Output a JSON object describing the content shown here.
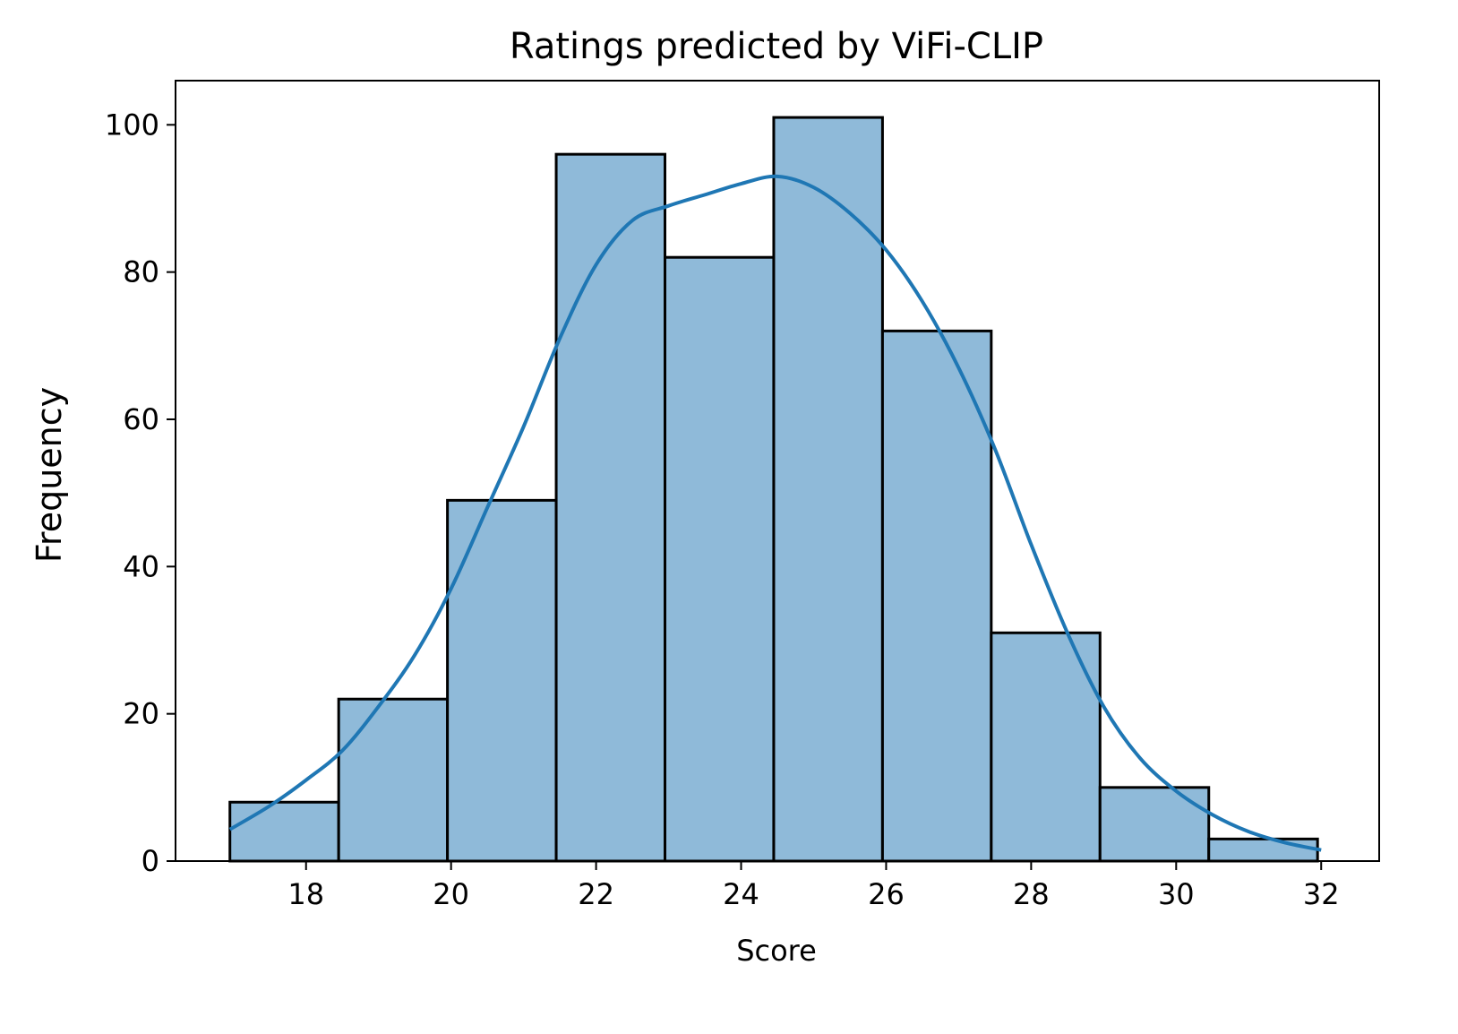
{
  "chart_data": {
    "type": "bar",
    "subtype": "histogram",
    "title": "Ratings predicted by ViFi-CLIP",
    "xlabel": "Score",
    "ylabel": "Frequency",
    "xlim": [
      16.2,
      32.8
    ],
    "ylim": [
      0,
      106
    ],
    "xticks": [
      18,
      20,
      22,
      24,
      26,
      28,
      30,
      32
    ],
    "yticks": [
      0,
      20,
      40,
      60,
      80,
      100
    ],
    "bin_edges": [
      16.95,
      18.45,
      19.95,
      21.45,
      22.95,
      24.45,
      25.95,
      27.45,
      28.95,
      30.45,
      31.95
    ],
    "values": [
      8,
      22,
      49,
      96,
      82,
      101,
      72,
      31,
      10,
      3
    ],
    "kde": {
      "x": [
        16.95,
        17.5,
        18.0,
        18.5,
        19.0,
        19.5,
        20.0,
        20.5,
        21.0,
        21.5,
        22.0,
        22.5,
        23.0,
        23.5,
        24.0,
        24.5,
        25.0,
        25.5,
        26.0,
        26.5,
        27.0,
        27.5,
        28.0,
        28.5,
        29.0,
        29.5,
        30.0,
        30.5,
        31.0,
        31.5,
        32.0
      ],
      "y": [
        4.3,
        7.5,
        11,
        15,
        21,
        28,
        37,
        48,
        59,
        71,
        81,
        87,
        89,
        90.5,
        92,
        93,
        91.5,
        88,
        83,
        76,
        67,
        56,
        43,
        31,
        21,
        14,
        9.5,
        6.3,
        4,
        2.5,
        1.5
      ]
    },
    "grid": false,
    "legend": "none"
  },
  "colors": {
    "bar_fill": "#8fbad9",
    "kde_line": "#1f77b4",
    "edge": "#000000"
  }
}
